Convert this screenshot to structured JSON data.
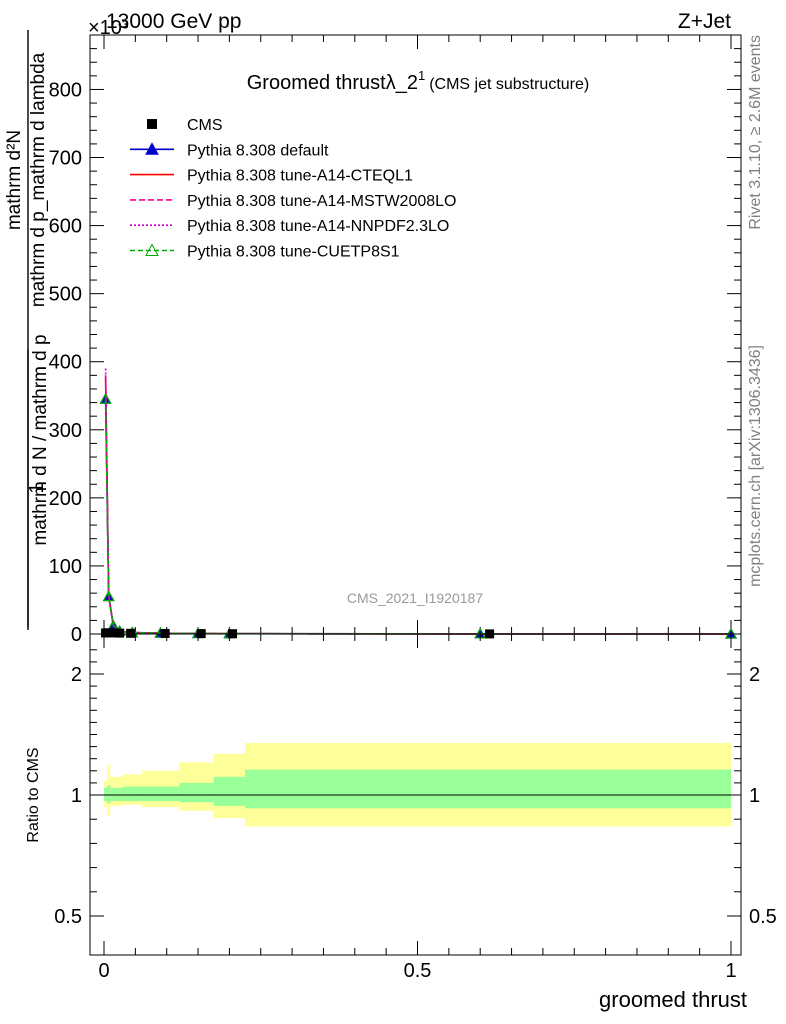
{
  "header": {
    "left": "13000 GeV pp",
    "right": "Z+Jet",
    "exponent": "×10³"
  },
  "side_text": {
    "rivet": "Rivet 3.1.10, ≥ 2.6M events",
    "mcplots": "mcplots.cern.ch [arXiv:1306.3436]"
  },
  "watermark": "CMS_2021_I1920187",
  "chart_data": [
    {
      "type": "line",
      "title_main": "Groomed thrust",
      "title_lambda": "λ_2",
      "title_sup": "1",
      "title_sub": "(CMS jet substructure)",
      "ylabel_main": "mathrm d N / mathrm d p",
      "ylabel_frac_num": "mathrm d²N",
      "ylabel_frac_den": "mathrm d p_mathrm d lambda",
      "ylabel_prefix": "1",
      "xlim": [
        -0.02,
        1.02
      ],
      "ylim": [
        0,
        880
      ],
      "yticks": [
        0,
        100,
        200,
        300,
        400,
        500,
        600,
        700,
        800
      ],
      "ytick_labels": [
        "0",
        "100",
        "200",
        "300",
        "400",
        "500",
        "600",
        "700",
        "800"
      ],
      "grid": false,
      "legend_position": "top-left",
      "cms_points": {
        "x": [
          0.0025,
          0.0075,
          0.015,
          0.025,
          0.0425,
          0.0975,
          0.155,
          0.205,
          0.615
        ],
        "y": [
          1.5,
          1.8,
          1.6,
          1.3,
          1.0,
          0.8,
          0.6,
          0.4,
          0.15
        ]
      },
      "series": [
        {
          "name": "CMS",
          "color": "#000000",
          "style": "marker-square"
        },
        {
          "name": "Pythia 8.308 default",
          "color": "#0000cc",
          "style": "solid-triangle",
          "x": [
            0.0025,
            0.0075,
            0.015,
            0.025,
            0.045,
            0.09,
            0.15,
            0.2,
            0.6,
            1.0
          ],
          "y": [
            345,
            55,
            12,
            4,
            2,
            1.2,
            0.7,
            0.4,
            0.1,
            0.05
          ]
        },
        {
          "name": "Pythia 8.308 tune-A14-CTEQL1",
          "color": "#ff0000",
          "style": "solid",
          "x": [
            0.0025,
            0.0075,
            0.015,
            0.025,
            0.045,
            0.09,
            0.15,
            0.2,
            0.6,
            1.0
          ],
          "y": [
            375,
            56,
            12,
            4,
            2,
            1.2,
            0.7,
            0.4,
            0.1,
            0.05
          ]
        },
        {
          "name": "Pythia 8.308 tune-A14-MSTW2008LO",
          "color": "#ff0080",
          "style": "dashed",
          "x": [
            0.0025,
            0.0075,
            0.015,
            0.025,
            0.045,
            0.09,
            0.15,
            0.2,
            0.6,
            1.0
          ],
          "y": [
            380,
            56,
            12,
            4,
            2,
            1.2,
            0.7,
            0.4,
            0.1,
            0.05
          ]
        },
        {
          "name": "Pythia 8.308 tune-A14-NNPDF2.3LO",
          "color": "#cc00cc",
          "style": "dotted",
          "x": [
            0.0025,
            0.0075,
            0.015,
            0.025,
            0.045,
            0.09,
            0.15,
            0.2,
            0.6,
            1.0
          ],
          "y": [
            390,
            57,
            12,
            4,
            2,
            1.2,
            0.7,
            0.4,
            0.1,
            0.05
          ]
        },
        {
          "name": "Pythia 8.308 tune-CUETP8S1",
          "color": "#00aa00",
          "style": "dashed-triangle-open",
          "x": [
            0.0025,
            0.0075,
            0.015,
            0.025,
            0.045,
            0.09,
            0.15,
            0.2,
            0.6,
            1.0
          ],
          "y": [
            345,
            55,
            12,
            4,
            2,
            1.2,
            0.7,
            0.4,
            0.1,
            0.05
          ]
        }
      ]
    },
    {
      "type": "area",
      "ylabel": "Ratio to CMS",
      "xlabel": "groomed thrust",
      "xlim": [
        -0.02,
        1.02
      ],
      "ylim": [
        0.35,
        2.3
      ],
      "yticks": [
        0.5,
        1,
        2
      ],
      "ytick_labels": [
        "0.5",
        "1",
        "2"
      ],
      "xticks": [
        0,
        0.5,
        1
      ],
      "xtick_labels": [
        "0",
        "0.5",
        "1"
      ],
      "bands": {
        "bins": [
          [
            0.0,
            0.005
          ],
          [
            0.005,
            0.01
          ],
          [
            0.01,
            0.03
          ],
          [
            0.03,
            0.06
          ],
          [
            0.06,
            0.12
          ],
          [
            0.12,
            0.175
          ],
          [
            0.175,
            0.225
          ],
          [
            0.225,
            1.0
          ]
        ],
        "stat_lo": [
          0.95,
          0.93,
          0.95,
          0.95,
          0.95,
          0.94,
          0.91,
          0.89
        ],
        "stat_hi": [
          1.06,
          1.08,
          1.06,
          1.07,
          1.07,
          1.1,
          1.15,
          1.21
        ],
        "total_lo": [
          0.9,
          0.83,
          0.91,
          0.92,
          0.9,
          0.87,
          0.81,
          0.74
        ],
        "total_hi": [
          1.12,
          1.25,
          1.15,
          1.17,
          1.2,
          1.27,
          1.34,
          1.43
        ],
        "stat_color": "#99ff99",
        "total_color": "#ffff99"
      }
    }
  ]
}
